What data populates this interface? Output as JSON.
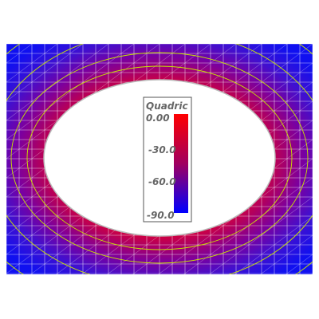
{
  "scalar_bar": {
    "title": "Quadric",
    "labels": [
      "0.00",
      "-30.0",
      "-60.0",
      "-90.0"
    ],
    "range": [
      -90,
      0
    ],
    "colors": {
      "max": "#ff0000",
      "min": "#0000ff"
    }
  },
  "colors": {
    "background": "#ffffff",
    "mesh": "#ffffff",
    "contour": "#c8e600",
    "hole_edge": "#bbbbbb",
    "legend_frame": "#555555",
    "legend_text": "#666666"
  },
  "contour_count": 4
}
